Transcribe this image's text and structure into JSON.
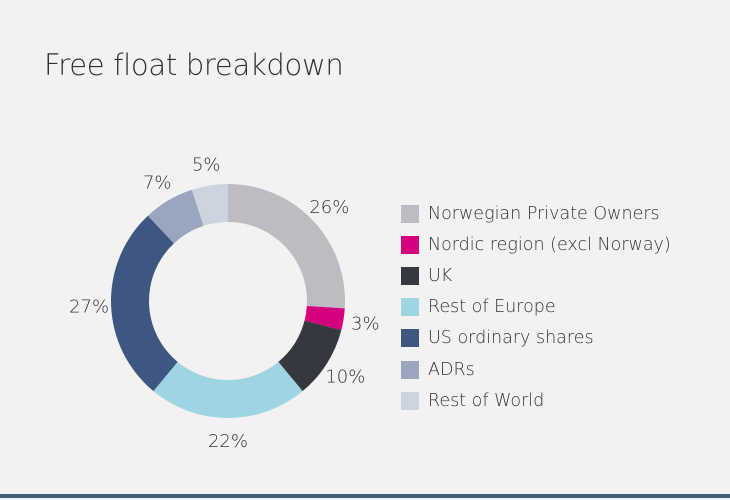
{
  "chart_data": {
    "type": "pie",
    "title": "Free float breakdown",
    "donut": true,
    "legend_position": "right",
    "series": [
      {
        "name": "Norwegian Private Owners",
        "value": 26,
        "label": "26%",
        "color": "#bdbcc2"
      },
      {
        "name": "Nordic region (excl Norway)",
        "value": 3,
        "label": "3%",
        "color": "#d4007e"
      },
      {
        "name": "UK",
        "value": 10,
        "label": "10%",
        "color": "#36383f"
      },
      {
        "name": "Rest of Europe",
        "value": 22,
        "label": "22%",
        "color": "#9fd4e2"
      },
      {
        "name": "US ordinary shares",
        "value": 27,
        "label": "27%",
        "color": "#3f5681"
      },
      {
        "name": "ADRs",
        "value": 7,
        "label": "7%",
        "color": "#9aa6bd"
      },
      {
        "name": "Rest of World",
        "value": 5,
        "label": "5%",
        "color": "#cdd3df"
      }
    ]
  }
}
